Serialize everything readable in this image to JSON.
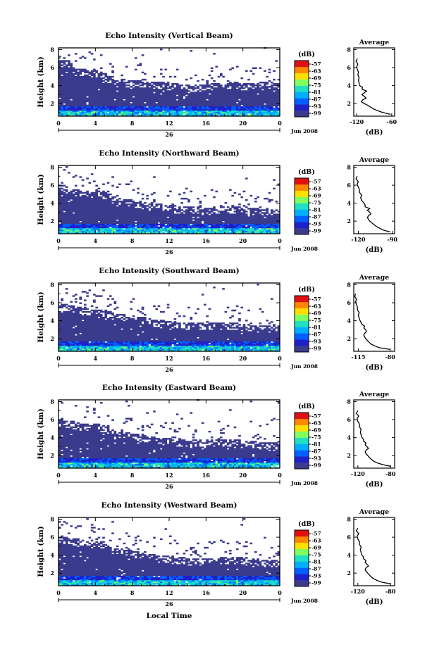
{
  "figure": {
    "xlabel": "Local Time",
    "avg_title": "Average",
    "avg_xlabel": "(dB)",
    "colorbar_unit": "(dB)",
    "day_label": "26",
    "month_label": "Jun 2008"
  },
  "chart_data": [
    {
      "type": "heatmap",
      "title": "Echo Intensity (Vertical Beam)",
      "ylabel": "Height (km)",
      "x_ticks": [
        "0",
        "4",
        "8",
        "12",
        "16",
        "20",
        "0"
      ],
      "x_range": [
        0,
        24
      ],
      "y_ticks": [
        "2",
        "4",
        "6",
        "8"
      ],
      "y_range": [
        0.6,
        8.2
      ],
      "colorbar_ticks": [
        "-57",
        "-63",
        "-69",
        "-75",
        "-81",
        "-87",
        "-93",
        "-99"
      ],
      "colorbar_range": [
        -102,
        -54
      ],
      "profile_top_km": [
        6.6,
        6.6,
        5.5,
        5.6,
        5.4,
        5.1,
        4.3,
        4.4,
        4.3,
        4.3,
        4.2,
        4.1,
        4.0,
        3.9,
        3.9,
        3.8,
        3.9,
        4.0,
        4.1,
        4.1,
        4.0,
        4.0,
        4.1,
        4.2,
        4.2
      ],
      "average": {
        "x_ticks": [
          "-120",
          "-60"
        ],
        "x_range": [
          -125,
          -55
        ],
        "y_ticks": [
          "2",
          "4",
          "6",
          "8"
        ],
        "y_range": [
          0.6,
          8.2
        ],
        "heights_km": [
          0.8,
          1.0,
          1.2,
          1.4,
          1.6,
          1.8,
          2.0,
          2.2,
          2.4,
          2.6,
          2.8,
          3.0,
          3.2,
          3.4,
          3.6,
          3.8,
          4.0,
          4.3,
          4.6,
          4.9,
          5.2,
          5.5,
          5.8,
          6.1,
          6.4,
          6.7,
          7.0
        ],
        "values_db": [
          -62,
          -75,
          -84,
          -91,
          -96,
          -101,
          -107,
          -112,
          -110,
          -104,
          -107,
          -111,
          -107,
          -103,
          -111,
          -110,
          -115,
          -116,
          -117,
          -116,
          -118,
          -117,
          -119,
          -120,
          -118,
          -121,
          -119
        ]
      }
    },
    {
      "type": "heatmap",
      "title": "Echo Intensity (Northward Beam)",
      "ylabel": "Height (km)",
      "x_ticks": [
        "0",
        "4",
        "8",
        "12",
        "16",
        "20",
        "0"
      ],
      "x_range": [
        0,
        24
      ],
      "y_ticks": [
        "2",
        "4",
        "6",
        "8"
      ],
      "y_range": [
        0.6,
        8.2
      ],
      "colorbar_ticks": [
        "-57",
        "-63",
        "-69",
        "-75",
        "-81",
        "-87",
        "-93",
        "-99"
      ],
      "colorbar_range": [
        -102,
        -54
      ],
      "profile_top_km": [
        5.8,
        5.6,
        5.3,
        5.0,
        5.2,
        5.0,
        4.4,
        4.2,
        4.1,
        3.9,
        3.7,
        3.6,
        3.5,
        3.4,
        3.3,
        3.3,
        3.2,
        3.3,
        3.4,
        3.4,
        3.3,
        3.2,
        3.1,
        3.0,
        3.1
      ],
      "average": {
        "x_ticks": [
          "-120",
          "-90"
        ],
        "x_range": [
          -124,
          -88
        ],
        "y_ticks": [
          "2",
          "4",
          "6",
          "8"
        ],
        "y_range": [
          0.6,
          8.2
        ],
        "heights_km": [
          0.8,
          1.0,
          1.2,
          1.4,
          1.6,
          1.8,
          2.0,
          2.2,
          2.4,
          2.6,
          2.8,
          3.0,
          3.2,
          3.4,
          3.6,
          3.8,
          4.0,
          4.3,
          4.6,
          4.9,
          5.2,
          5.5,
          5.8,
          6.1,
          6.4,
          6.7,
          7.0
        ],
        "values_db": [
          -92,
          -98,
          -101,
          -104,
          -106,
          -108,
          -110,
          -111,
          -112,
          -111,
          -109,
          -110,
          -112,
          -110,
          -114,
          -114,
          -115,
          -117,
          -118,
          -117,
          -119,
          -119,
          -120,
          -121,
          -120,
          -122,
          -121
        ]
      }
    },
    {
      "type": "heatmap",
      "title": "Echo Intensity (Southward Beam)",
      "ylabel": "Height (km)",
      "x_ticks": [
        "0",
        "4",
        "8",
        "12",
        "16",
        "20",
        "0"
      ],
      "x_range": [
        0,
        24
      ],
      "y_ticks": [
        "2",
        "4",
        "6",
        "8"
      ],
      "y_range": [
        0.6,
        8.2
      ],
      "colorbar_ticks": [
        "-57",
        "-63",
        "-69",
        "-75",
        "-81",
        "-87",
        "-93",
        "-99"
      ],
      "colorbar_range": [
        -102,
        -54
      ],
      "profile_top_km": [
        5.6,
        5.5,
        5.3,
        5.1,
        5.0,
        5.0,
        4.6,
        4.4,
        4.3,
        4.2,
        3.9,
        3.8,
        3.7,
        3.6,
        3.5,
        3.5,
        3.4,
        3.5,
        3.5,
        3.5,
        3.4,
        3.3,
        3.2,
        3.1,
        3.2
      ],
      "average": {
        "x_ticks": [
          "-115",
          "-80"
        ],
        "x_range": [
          -120,
          -75
        ],
        "y_ticks": [
          "2",
          "4",
          "6",
          "8"
        ],
        "y_range": [
          0.6,
          8.2
        ],
        "heights_km": [
          0.8,
          1.0,
          1.2,
          1.4,
          1.6,
          1.8,
          2.0,
          2.2,
          2.4,
          2.6,
          2.8,
          3.0,
          3.2,
          3.4,
          3.6,
          3.8,
          4.0,
          4.3,
          4.6,
          4.9,
          5.2,
          5.5,
          5.8,
          6.1,
          6.4,
          6.7,
          7.0
        ],
        "values_db": [
          -80,
          -92,
          -97,
          -101,
          -103,
          -105,
          -107,
          -108,
          -109,
          -108,
          -106,
          -107,
          -109,
          -108,
          -111,
          -112,
          -113,
          -114,
          -115,
          -114,
          -116,
          -116,
          -117,
          -118,
          -117,
          -119,
          -118
        ]
      }
    },
    {
      "type": "heatmap",
      "title": "Echo Intensity (Eastward Beam)",
      "ylabel": "Height (km)",
      "x_ticks": [
        "0",
        "4",
        "8",
        "12",
        "16",
        "20",
        "0"
      ],
      "x_range": [
        0,
        24
      ],
      "y_ticks": [
        "2",
        "4",
        "6",
        "8"
      ],
      "y_range": [
        0.6,
        8.2
      ],
      "colorbar_ticks": [
        "-57",
        "-63",
        "-69",
        "-75",
        "-81",
        "-87",
        "-93",
        "-99"
      ],
      "colorbar_range": [
        -102,
        -54
      ],
      "profile_top_km": [
        5.8,
        5.6,
        5.4,
        5.2,
        5.3,
        5.1,
        4.5,
        4.3,
        4.2,
        4.0,
        3.8,
        3.7,
        3.6,
        3.5,
        3.4,
        3.4,
        3.3,
        3.4,
        3.5,
        3.5,
        3.4,
        3.3,
        3.2,
        3.1,
        3.2
      ],
      "average": {
        "x_ticks": [
          "-120",
          "-80"
        ],
        "x_range": [
          -125,
          -75
        ],
        "y_ticks": [
          "2",
          "4",
          "6",
          "8"
        ],
        "y_range": [
          0.6,
          8.2
        ],
        "heights_km": [
          0.8,
          1.0,
          1.2,
          1.4,
          1.6,
          1.8,
          2.0,
          2.2,
          2.4,
          2.6,
          2.8,
          3.0,
          3.2,
          3.4,
          3.6,
          3.8,
          4.0,
          4.3,
          4.6,
          4.9,
          5.2,
          5.5,
          5.8,
          6.1,
          6.4,
          6.7,
          7.0
        ],
        "values_db": [
          -80,
          -90,
          -97,
          -101,
          -104,
          -106,
          -108,
          -110,
          -111,
          -110,
          -107,
          -109,
          -111,
          -110,
          -113,
          -113,
          -115,
          -116,
          -117,
          -116,
          -118,
          -118,
          -120,
          -121,
          -119,
          -122,
          -120
        ]
      }
    },
    {
      "type": "heatmap",
      "title": "Echo Intensity (Westward Beam)",
      "ylabel": "Height (km)",
      "x_ticks": [
        "0",
        "4",
        "8",
        "12",
        "16",
        "20",
        "0"
      ],
      "x_range": [
        0,
        24
      ],
      "y_ticks": [
        "2",
        "4",
        "6",
        "8"
      ],
      "y_range": [
        0.6,
        8.2
      ],
      "colorbar_ticks": [
        "-57",
        "-63",
        "-69",
        "-75",
        "-81",
        "-87",
        "-93",
        "-99"
      ],
      "colorbar_range": [
        -102,
        -54
      ],
      "profile_top_km": [
        5.9,
        5.7,
        5.5,
        5.3,
        5.4,
        5.2,
        4.6,
        4.4,
        4.2,
        4.0,
        3.8,
        3.7,
        3.6,
        3.5,
        3.4,
        3.4,
        3.3,
        3.4,
        3.5,
        3.5,
        3.4,
        3.3,
        3.2,
        3.1,
        3.2
      ],
      "average": {
        "x_ticks": [
          "-120",
          "-80"
        ],
        "x_range": [
          -125,
          -75
        ],
        "y_ticks": [
          "2",
          "4",
          "6",
          "8"
        ],
        "y_range": [
          0.6,
          8.2
        ],
        "heights_km": [
          0.8,
          1.0,
          1.2,
          1.4,
          1.6,
          1.8,
          2.0,
          2.2,
          2.4,
          2.6,
          2.8,
          3.0,
          3.2,
          3.4,
          3.6,
          3.8,
          4.0,
          4.3,
          4.6,
          4.9,
          5.2,
          5.5,
          5.8,
          6.1,
          6.4,
          6.7,
          7.0
        ],
        "values_db": [
          -80,
          -91,
          -97,
          -101,
          -104,
          -106,
          -108,
          -110,
          -111,
          -110,
          -107,
          -109,
          -111,
          -110,
          -113,
          -113,
          -115,
          -116,
          -117,
          -116,
          -118,
          -118,
          -120,
          -121,
          -119,
          -122,
          -120
        ]
      }
    }
  ]
}
